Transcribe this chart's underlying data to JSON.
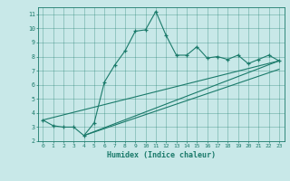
{
  "xlabel": "Humidex (Indice chaleur)",
  "ylabel": "",
  "background_color": "#c8e8e8",
  "line_color": "#1a7a6a",
  "xlim": [
    -0.5,
    23.5
  ],
  "ylim": [
    2,
    11.5
  ],
  "xticks": [
    0,
    1,
    2,
    3,
    4,
    5,
    6,
    7,
    8,
    9,
    10,
    11,
    12,
    13,
    14,
    15,
    16,
    17,
    18,
    19,
    20,
    21,
    22,
    23
  ],
  "yticks": [
    2,
    3,
    4,
    5,
    6,
    7,
    8,
    9,
    10,
    11
  ],
  "main_series_x": [
    0,
    1,
    2,
    3,
    4,
    5,
    6,
    7,
    8,
    9,
    10,
    11,
    12,
    13,
    14,
    15,
    16,
    17,
    18,
    19,
    20,
    21,
    22,
    23
  ],
  "main_series_y": [
    3.5,
    3.1,
    3.0,
    3.0,
    2.4,
    3.3,
    6.2,
    7.4,
    8.4,
    9.8,
    9.9,
    11.2,
    9.5,
    8.1,
    8.1,
    8.7,
    7.9,
    8.0,
    7.8,
    8.1,
    7.5,
    7.8,
    8.1,
    7.7
  ],
  "line1_x": [
    0,
    23
  ],
  "line1_y": [
    3.5,
    7.7
  ],
  "line2_x": [
    4,
    23
  ],
  "line2_y": [
    2.4,
    7.7
  ],
  "line3_x": [
    4,
    23
  ],
  "line3_y": [
    2.4,
    7.1
  ]
}
